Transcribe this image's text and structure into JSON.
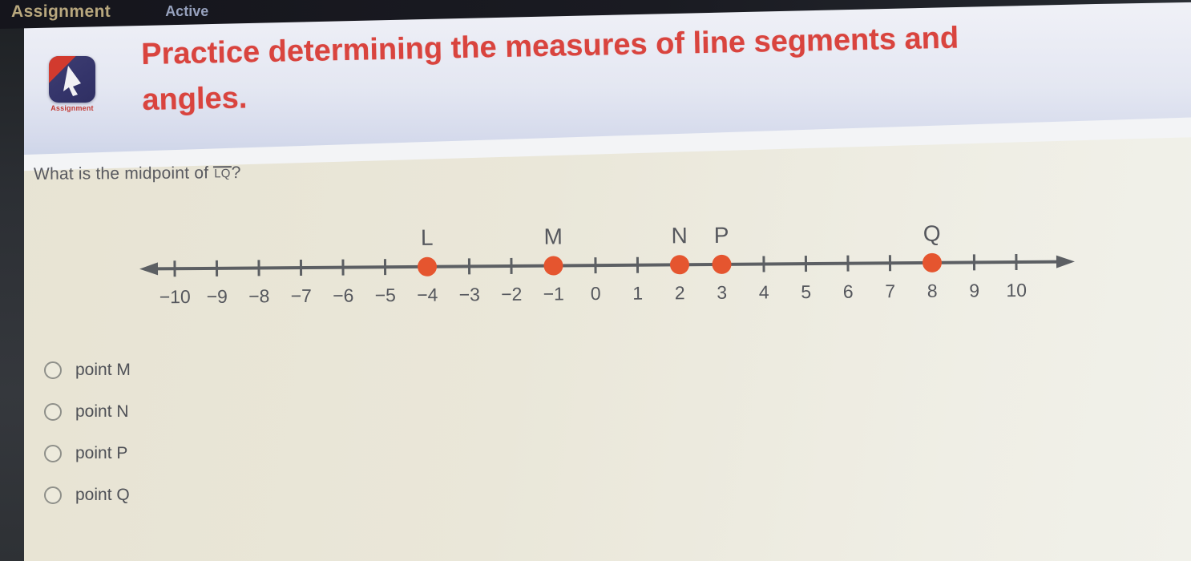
{
  "top_bar": {
    "left_label": "Assignment",
    "right_label": "Active"
  },
  "header": {
    "icon_caption": "Assignment",
    "title_line1": "Practice determining the measures of line segments and",
    "title_line2": "angles."
  },
  "question": {
    "prefix": "What is the midpoint of ",
    "segment_label": "LQ",
    "suffix": "?"
  },
  "chart_data": {
    "type": "number_line",
    "axis": {
      "min": -10,
      "max": 10,
      "step": 1,
      "arrows": "both"
    },
    "tick_values": [
      -10,
      -9,
      -8,
      -7,
      -6,
      -5,
      -4,
      -3,
      -2,
      -1,
      0,
      1,
      2,
      3,
      4,
      5,
      6,
      7,
      8,
      9,
      10
    ],
    "tick_labels": [
      "−10",
      "−9",
      "−8",
      "−7",
      "−6",
      "−5",
      "−4",
      "−3",
      "−2",
      "−1",
      "0",
      "1",
      "2",
      "3",
      "4",
      "5",
      "6",
      "7",
      "8",
      "9",
      "10"
    ],
    "points": [
      {
        "label": "L",
        "value": -4
      },
      {
        "label": "M",
        "value": -1
      },
      {
        "label": "N",
        "value": 2
      },
      {
        "label": "P",
        "value": 3
      },
      {
        "label": "Q",
        "value": 8
      }
    ],
    "point_color": "#e5552f",
    "axis_color": "#5c5f63",
    "label_color": "#55575d"
  },
  "options": [
    {
      "id": "point-m",
      "label": "point M",
      "selected": false
    },
    {
      "id": "point-n",
      "label": "point N",
      "selected": false
    },
    {
      "id": "point-p",
      "label": "point P",
      "selected": false
    },
    {
      "id": "point-q",
      "label": "point Q",
      "selected": false
    }
  ],
  "colors": {
    "title_red": "#d9443e",
    "top_bar_bg": "#17171e",
    "assignment_gold": "#b9a87e",
    "active_blue": "#96a1bd",
    "header_band": "#dfe3f0",
    "main_bg": "#e9e6d8",
    "icon_navy": "#34346a",
    "icon_red": "#d23a2e",
    "text_dark": "#54565c"
  }
}
